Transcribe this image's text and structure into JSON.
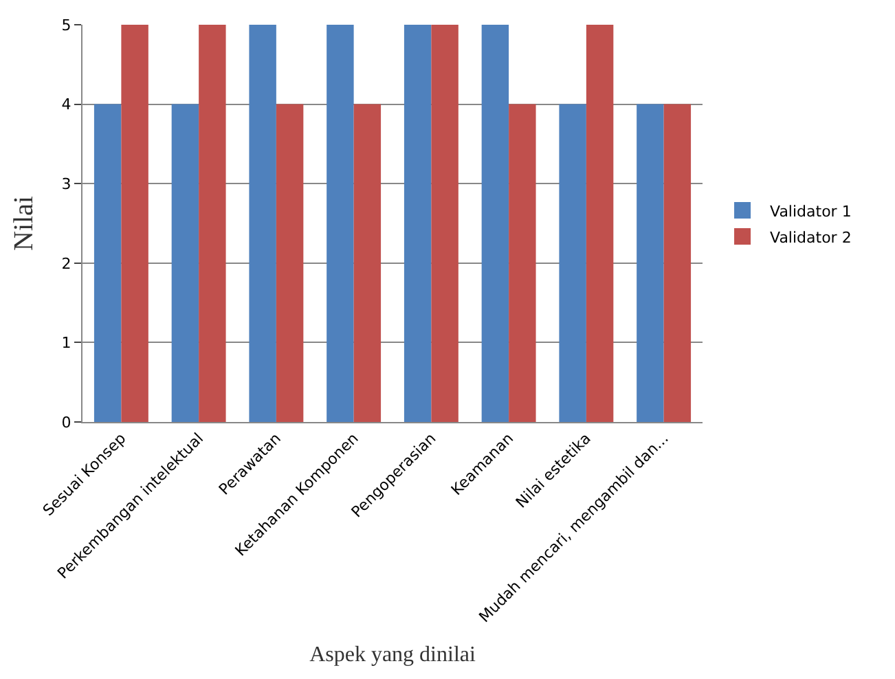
{
  "chart_data": {
    "type": "bar",
    "xlabel": "Aspek yang dinilai",
    "ylabel": "Nilai",
    "categories": [
      "Sesuai Konsep",
      "Perkembangan intelektual",
      "Perawatan",
      "Ketahanan Komponen",
      "Pengoperasian",
      "Keamanan",
      "Nilai estetika",
      "Mudah mencari, mengambil dan..."
    ],
    "series": [
      {
        "name": "Validator 1",
        "color": "#4f81bd",
        "values": [
          4,
          4,
          5,
          5,
          5,
          5,
          4,
          4
        ]
      },
      {
        "name": "Validator 2",
        "color": "#c0504d",
        "values": [
          5,
          5,
          4,
          4,
          5,
          4,
          5,
          4
        ]
      }
    ],
    "ylim": [
      0,
      5
    ],
    "yticks": [
      0,
      1,
      2,
      3,
      4,
      5
    ],
    "grid": "y",
    "legend": "right"
  }
}
